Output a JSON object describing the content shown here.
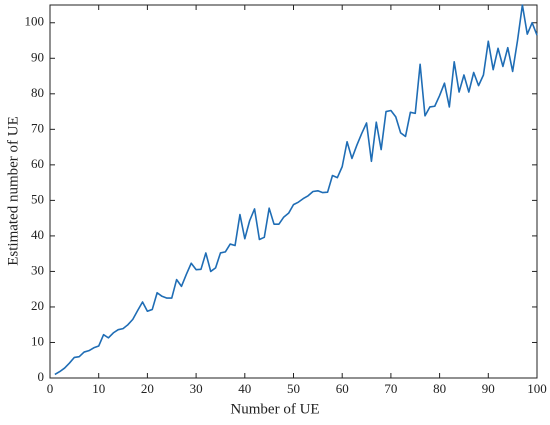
{
  "chart_data": {
    "type": "line",
    "xlabel": "Number of UE",
    "ylabel": "Estimated number of UE",
    "x": [
      1,
      2,
      3,
      4,
      5,
      6,
      7,
      8,
      9,
      10,
      11,
      12,
      13,
      14,
      15,
      16,
      17,
      18,
      19,
      20,
      21,
      22,
      23,
      24,
      25,
      26,
      27,
      28,
      29,
      30,
      31,
      32,
      33,
      34,
      35,
      36,
      37,
      38,
      39,
      40,
      41,
      42,
      43,
      44,
      45,
      46,
      47,
      48,
      49,
      50,
      51,
      52,
      53,
      54,
      55,
      56,
      57,
      58,
      59,
      60,
      61,
      62,
      63,
      64,
      65,
      66,
      67,
      68,
      69,
      70,
      71,
      72,
      73,
      74,
      75,
      76,
      77,
      78,
      79,
      80,
      81,
      82,
      83,
      84,
      85,
      86,
      87,
      88,
      89,
      90,
      91,
      92,
      93,
      94,
      95,
      96,
      97,
      98,
      99,
      100
    ],
    "series": [
      {
        "name": "Estimated",
        "color": "#1f6db5",
        "values": [
          1,
          1.8,
          2.8,
          4.2,
          5.8,
          6,
          7.3,
          7.7,
          8.5,
          9,
          12.2,
          11.3,
          12.7,
          13.6,
          13.9,
          15,
          16.5,
          19,
          21.4,
          18.8,
          19.3,
          24,
          23,
          22.5,
          22.5,
          27.7,
          25.8,
          29.2,
          32.3,
          30.5,
          30.6,
          35.2,
          30,
          31,
          35.2,
          35.5,
          37.7,
          37.3,
          46,
          39.2,
          44.3,
          47.6,
          39,
          39.6,
          47.8,
          43.3,
          43.3,
          45.3,
          46.4,
          48.8,
          49.5,
          50.5,
          51.3,
          52.5,
          52.7,
          52.2,
          52.3,
          57,
          56.4,
          59.5,
          66.5,
          61.8,
          65.5,
          68.8,
          71.8,
          61,
          72,
          64.3,
          75,
          75.3,
          73.5,
          69,
          68,
          74.8,
          74.5,
          88.3,
          73.8,
          76.3,
          76.5,
          79.5,
          83,
          76.3,
          89,
          80.5,
          85.3,
          80.5,
          86,
          82.3,
          85.3,
          94.8,
          86.8,
          92.8,
          87.7,
          93,
          86.3,
          95,
          105,
          96.8,
          100,
          96.5
        ]
      }
    ],
    "xlim": [
      0,
      100
    ],
    "xticks": [
      0,
      10,
      20,
      30,
      40,
      50,
      60,
      70,
      80,
      90,
      100
    ],
    "ylim": [
      0,
      105
    ],
    "yticks": [
      0,
      10,
      20,
      30,
      40,
      50,
      60,
      70,
      80,
      90,
      100
    ]
  }
}
